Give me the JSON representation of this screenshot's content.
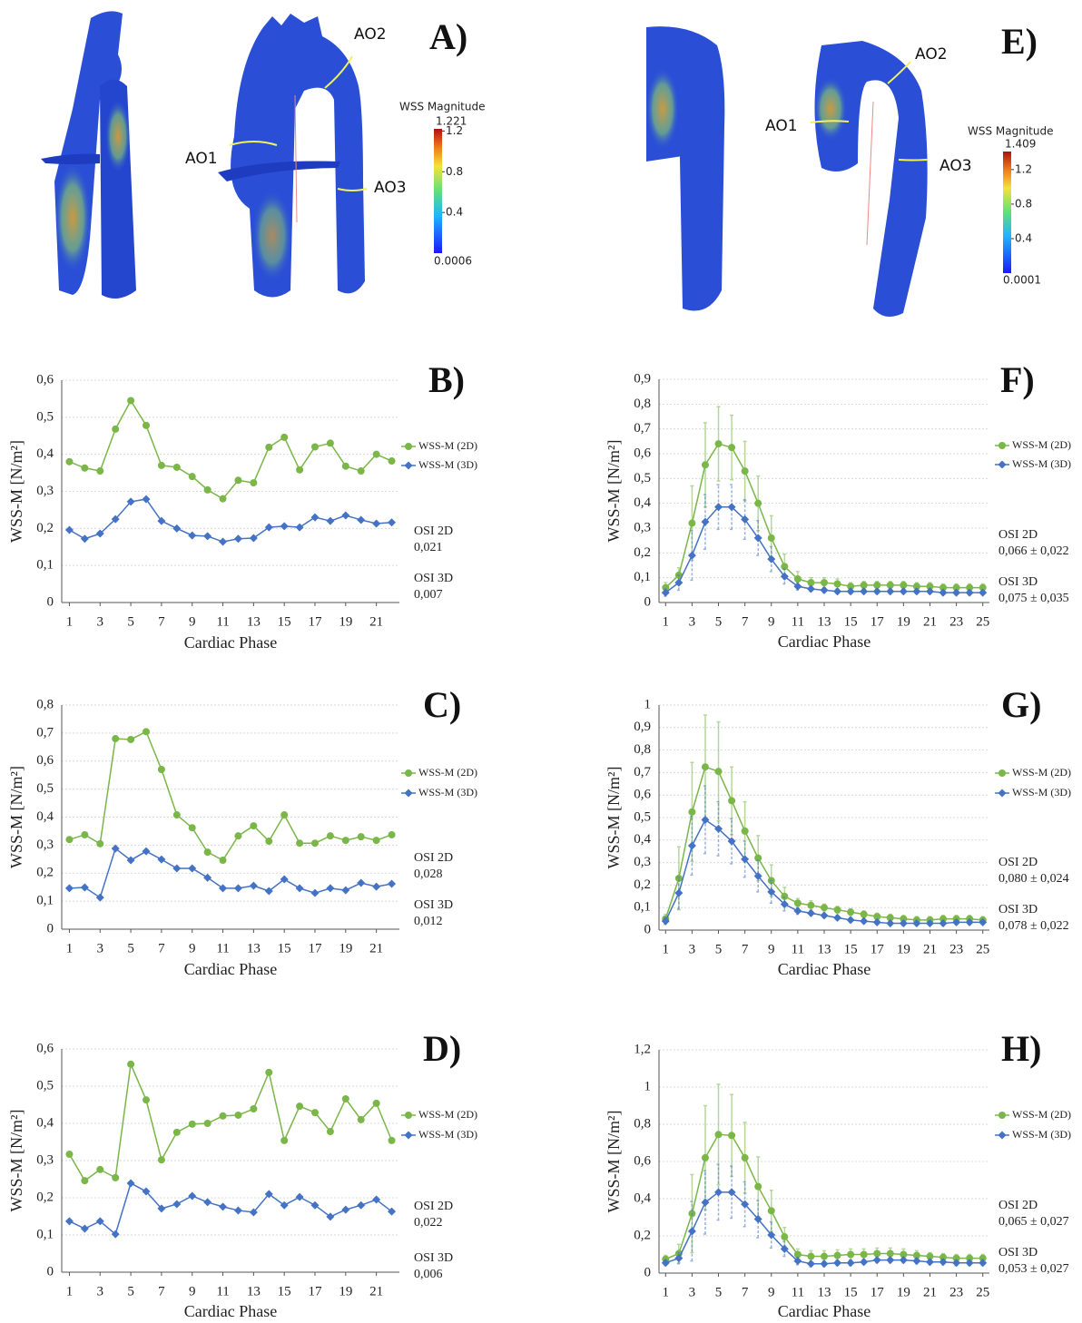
{
  "panels": [
    {
      "label": "A)",
      "annotations": [
        "AO1",
        "AO2",
        "AO3"
      ],
      "colorbar": {
        "title": "WSS Magnitude",
        "max": 1.221,
        "min": 0.0006,
        "ticks": [
          1.2,
          0.8,
          0.4
        ]
      }
    },
    {
      "label": "E)",
      "annotations": [
        "AO1",
        "AO2",
        "AO3"
      ],
      "colorbar": {
        "title": "WSS Magnitude",
        "max": 1.409,
        "min": 0.0001,
        "ticks": [
          1.2,
          0.8,
          0.4
        ]
      }
    }
  ],
  "chart_data": [
    {
      "type": "line",
      "label": "B)",
      "ylabel": "WSS-M [N/m²]",
      "xlabel": "Cardiac Phase",
      "x": [
        1,
        2,
        3,
        4,
        5,
        6,
        7,
        8,
        9,
        10,
        11,
        12,
        13,
        14,
        15,
        16,
        17,
        18,
        19,
        20,
        21,
        22
      ],
      "xlim": [
        0.5,
        22.5
      ],
      "xticks": [
        1,
        3,
        5,
        7,
        9,
        11,
        13,
        15,
        17,
        19,
        21
      ],
      "ylim": [
        0,
        0.6
      ],
      "yticks": [
        0,
        {
          "value": 0.1,
          "label": "0,1"
        },
        {
          "value": 0.2,
          "label": "0,2"
        },
        {
          "value": 0.3,
          "label": "0,3"
        },
        {
          "value": 0.4,
          "label": "0,4"
        },
        {
          "value": 0.5,
          "label": "0,5"
        },
        {
          "value": 0.6,
          "label": "0,6"
        }
      ],
      "grid": true,
      "legend": "right",
      "series": [
        {
          "name": "WSS-M (2D)",
          "color": "#7ab648",
          "marker": "circle",
          "values": [
            0.38,
            0.363,
            0.355,
            0.468,
            0.545,
            0.478,
            0.37,
            0.365,
            0.34,
            0.304,
            0.28,
            0.33,
            0.323,
            0.419,
            0.446,
            0.358,
            0.42,
            0.43,
            0.368,
            0.355,
            0.4,
            0.382
          ]
        },
        {
          "name": "WSS-M (3D)",
          "color": "#4472c4",
          "marker": "diamond",
          "values": [
            0.196,
            0.172,
            0.186,
            0.225,
            0.272,
            0.279,
            0.22,
            0.2,
            0.181,
            0.179,
            0.164,
            0.172,
            0.174,
            0.203,
            0.206,
            0.203,
            0.23,
            0.22,
            0.235,
            0.223,
            0.213,
            0.216
          ]
        }
      ],
      "annotations": [
        "OSI 2D",
        "0,021",
        "OSI 3D",
        "0,007"
      ]
    },
    {
      "type": "line",
      "label": "C)",
      "ylabel": "WSS-M [N/m²]",
      "xlabel": "Cardiac Phase",
      "x": [
        1,
        2,
        3,
        4,
        5,
        6,
        7,
        8,
        9,
        10,
        11,
        12,
        13,
        14,
        15,
        16,
        17,
        18,
        19,
        20,
        21,
        22
      ],
      "xlim": [
        0.5,
        22.5
      ],
      "xticks": [
        1,
        3,
        5,
        7,
        9,
        11,
        13,
        15,
        17,
        19,
        21
      ],
      "ylim": [
        0,
        0.8
      ],
      "yticks": [
        0,
        {
          "value": 0.1,
          "label": "0,1"
        },
        {
          "value": 0.2,
          "label": "0,2"
        },
        {
          "value": 0.3,
          "label": "0,3"
        },
        {
          "value": 0.4,
          "label": "0,4"
        },
        {
          "value": 0.5,
          "label": "0,5"
        },
        {
          "value": 0.6,
          "label": "0,6"
        },
        {
          "value": 0.7,
          "label": "0,7"
        },
        {
          "value": 0.8,
          "label": "0,8"
        }
      ],
      "grid": true,
      "legend": "right",
      "series": [
        {
          "name": "WSS-M (2D)",
          "color": "#7ab648",
          "marker": "circle",
          "values": [
            0.32,
            0.337,
            0.305,
            0.68,
            0.677,
            0.705,
            0.57,
            0.408,
            0.362,
            0.275,
            0.246,
            0.333,
            0.369,
            0.314,
            0.408,
            0.307,
            0.307,
            0.333,
            0.317,
            0.33,
            0.317,
            0.337
          ]
        },
        {
          "name": "WSS-M (3D)",
          "color": "#4472c4",
          "marker": "diamond",
          "values": [
            0.146,
            0.149,
            0.113,
            0.288,
            0.246,
            0.278,
            0.249,
            0.217,
            0.217,
            0.184,
            0.146,
            0.146,
            0.155,
            0.136,
            0.178,
            0.146,
            0.129,
            0.146,
            0.139,
            0.165,
            0.152,
            0.162
          ]
        }
      ],
      "annotations": [
        "OSI 2D",
        "0,028",
        "OSI 3D",
        "0,012"
      ]
    },
    {
      "type": "line",
      "label": "D)",
      "ylabel": "WSS-M [N/m²]",
      "xlabel": "Cardiac Phase",
      "x": [
        1,
        2,
        3,
        4,
        5,
        6,
        7,
        8,
        9,
        10,
        11,
        12,
        13,
        14,
        15,
        16,
        17,
        18,
        19,
        20,
        21,
        22
      ],
      "xlim": [
        0.5,
        22.5
      ],
      "xticks": [
        1,
        3,
        5,
        7,
        9,
        11,
        13,
        15,
        17,
        19,
        21
      ],
      "ylim": [
        0,
        0.6
      ],
      "yticks": [
        0,
        {
          "value": 0.1,
          "label": "0,1"
        },
        {
          "value": 0.2,
          "label": "0,2"
        },
        {
          "value": 0.3,
          "label": "0,3"
        },
        {
          "value": 0.4,
          "label": "0,4"
        },
        {
          "value": 0.5,
          "label": "0,5"
        },
        {
          "value": 0.6,
          "label": "0,6"
        }
      ],
      "grid": true,
      "legend": "right",
      "series": [
        {
          "name": "WSS-M (2D)",
          "color": "#7ab648",
          "marker": "circle",
          "values": [
            0.317,
            0.246,
            0.276,
            0.254,
            0.559,
            0.463,
            0.302,
            0.376,
            0.398,
            0.4,
            0.42,
            0.422,
            0.439,
            0.537,
            0.354,
            0.446,
            0.429,
            0.378,
            0.466,
            0.41,
            0.454,
            0.354
          ]
        },
        {
          "name": "WSS-M (3D)",
          "color": "#4472c4",
          "marker": "diamond",
          "values": [
            0.137,
            0.117,
            0.137,
            0.102,
            0.239,
            0.217,
            0.171,
            0.183,
            0.205,
            0.188,
            0.176,
            0.166,
            0.161,
            0.21,
            0.18,
            0.202,
            0.18,
            0.149,
            0.168,
            0.18,
            0.195,
            0.163
          ]
        }
      ],
      "annotations": [
        "OSI 2D",
        "0,022",
        "OSI 3D",
        "0,006"
      ]
    },
    {
      "type": "line",
      "label": "F)",
      "ylabel": "WSS-M [N/m²]",
      "xlabel": "Cardiac Phase",
      "x": [
        1,
        2,
        3,
        4,
        5,
        6,
        7,
        8,
        9,
        10,
        11,
        12,
        13,
        14,
        15,
        16,
        17,
        18,
        19,
        20,
        21,
        22,
        23,
        24,
        25
      ],
      "xlim": [
        0.5,
        25.5
      ],
      "xticks": [
        1,
        3,
        5,
        7,
        9,
        11,
        13,
        15,
        17,
        19,
        21,
        23,
        25
      ],
      "ylim": [
        0,
        0.9
      ],
      "yticks": [
        0,
        {
          "value": 0.1,
          "label": "0,1"
        },
        {
          "value": 0.2,
          "label": "0,2"
        },
        {
          "value": 0.3,
          "label": "0,3"
        },
        {
          "value": 0.4,
          "label": "0,4"
        },
        {
          "value": 0.5,
          "label": "0,5"
        },
        {
          "value": 0.6,
          "label": "0,6"
        },
        {
          "value": 0.7,
          "label": "0,7"
        },
        {
          "value": 0.8,
          "label": "0,8"
        },
        {
          "value": 0.9,
          "label": "0,9"
        }
      ],
      "grid": true,
      "legend": "right",
      "series": [
        {
          "name": "WSS-M (2D)",
          "color": "#7ab648",
          "marker": "circle",
          "values": [
            0.06,
            0.11,
            0.32,
            0.555,
            0.64,
            0.625,
            0.53,
            0.4,
            0.26,
            0.145,
            0.095,
            0.08,
            0.08,
            0.075,
            0.065,
            0.07,
            0.07,
            0.07,
            0.07,
            0.065,
            0.065,
            0.06,
            0.06,
            0.06,
            0.06
          ],
          "errors": [
            0.02,
            0.03,
            0.15,
            0.17,
            0.15,
            0.13,
            0.12,
            0.11,
            0.09,
            0.05,
            0.03,
            0.02,
            0.02,
            0.02,
            0.015,
            0.015,
            0.015,
            0.015,
            0.015,
            0.015,
            0.015,
            0.015,
            0.015,
            0.015,
            0.015
          ]
        },
        {
          "name": "WSS-M (3D)",
          "color": "#4472c4",
          "marker": "diamond",
          "values": [
            0.04,
            0.08,
            0.19,
            0.325,
            0.385,
            0.385,
            0.335,
            0.26,
            0.175,
            0.105,
            0.065,
            0.055,
            0.05,
            0.045,
            0.045,
            0.045,
            0.045,
            0.045,
            0.045,
            0.045,
            0.045,
            0.04,
            0.04,
            0.04,
            0.04
          ],
          "errors": [
            0.015,
            0.03,
            0.1,
            0.11,
            0.09,
            0.09,
            0.08,
            0.07,
            0.05,
            0.03,
            0.015,
            0.01,
            0.01,
            0.01,
            0.01,
            0.01,
            0.01,
            0.01,
            0.01,
            0.01,
            0.01,
            0.01,
            0.01,
            0.01,
            0.01
          ]
        }
      ],
      "annotations": [
        "OSI 2D",
        "0,066 ± 0,022",
        "OSI 3D",
        "0,075 ± 0,035"
      ]
    },
    {
      "type": "line",
      "label": "G)",
      "ylabel": "WSS-M [N/m²]",
      "xlabel": "Cardiac Phase",
      "x": [
        1,
        2,
        3,
        4,
        5,
        6,
        7,
        8,
        9,
        10,
        11,
        12,
        13,
        14,
        15,
        16,
        17,
        18,
        19,
        20,
        21,
        22,
        23,
        24,
        25
      ],
      "xlim": [
        0.5,
        25.5
      ],
      "xticks": [
        1,
        3,
        5,
        7,
        9,
        11,
        13,
        15,
        17,
        19,
        21,
        23,
        25
      ],
      "ylim": [
        0,
        1
      ],
      "yticks": [
        0,
        {
          "value": 0.1,
          "label": "0,1"
        },
        {
          "value": 0.2,
          "label": "0,2"
        },
        {
          "value": 0.3,
          "label": "0,3"
        },
        {
          "value": 0.4,
          "label": "0,4"
        },
        {
          "value": 0.5,
          "label": "0,5"
        },
        {
          "value": 0.6,
          "label": "0,6"
        },
        {
          "value": 0.7,
          "label": "0,7"
        },
        {
          "value": 0.8,
          "label": "0,8"
        },
        {
          "value": 0.9,
          "label": "0,9"
        },
        1
      ],
      "grid": true,
      "legend": "right",
      "series": [
        {
          "name": "WSS-M (2D)",
          "color": "#7ab648",
          "marker": "circle",
          "values": [
            0.05,
            0.23,
            0.525,
            0.725,
            0.705,
            0.575,
            0.44,
            0.32,
            0.22,
            0.15,
            0.12,
            0.11,
            0.1,
            0.09,
            0.08,
            0.07,
            0.06,
            0.055,
            0.05,
            0.045,
            0.045,
            0.05,
            0.05,
            0.05,
            0.045
          ],
          "errors": [
            0.02,
            0.14,
            0.22,
            0.23,
            0.22,
            0.15,
            0.13,
            0.1,
            0.07,
            0.04,
            0.02,
            0.02,
            0.015,
            0.015,
            0.015,
            0.015,
            0.015,
            0.015,
            0.015,
            0.015,
            0.015,
            0.015,
            0.015,
            0.015,
            0.015
          ]
        },
        {
          "name": "WSS-M (3D)",
          "color": "#4472c4",
          "marker": "diamond",
          "values": [
            0.04,
            0.165,
            0.375,
            0.49,
            0.45,
            0.395,
            0.315,
            0.24,
            0.17,
            0.115,
            0.085,
            0.075,
            0.065,
            0.055,
            0.045,
            0.04,
            0.035,
            0.03,
            0.03,
            0.03,
            0.03,
            0.03,
            0.035,
            0.035,
            0.035
          ],
          "errors": [
            0.015,
            0.07,
            0.13,
            0.15,
            0.12,
            0.1,
            0.08,
            0.07,
            0.05,
            0.03,
            0.015,
            0.01,
            0.01,
            0.01,
            0.01,
            0.01,
            0.01,
            0.01,
            0.01,
            0.01,
            0.01,
            0.01,
            0.01,
            0.01,
            0.01
          ]
        }
      ],
      "annotations": [
        "OSI 2D",
        "0,080 ± 0,024",
        "OSI 3D",
        "0,078 ± 0,022"
      ]
    },
    {
      "type": "line",
      "label": "H)",
      "ylabel": "WSS-M [N/m²]",
      "xlabel": "Cardiac Phase",
      "x": [
        1,
        2,
        3,
        4,
        5,
        6,
        7,
        8,
        9,
        10,
        11,
        12,
        13,
        14,
        15,
        16,
        17,
        18,
        19,
        20,
        21,
        22,
        23,
        24,
        25
      ],
      "xlim": [
        0.5,
        25.5
      ],
      "xticks": [
        1,
        3,
        5,
        7,
        9,
        11,
        13,
        15,
        17,
        19,
        21,
        23,
        25
      ],
      "ylim": [
        0,
        1.2
      ],
      "yticks": [
        0,
        {
          "value": 0.2,
          "label": "0,2"
        },
        {
          "value": 0.4,
          "label": "0,4"
        },
        {
          "value": 0.6,
          "label": "0,6"
        },
        {
          "value": 0.8,
          "label": "0,8"
        },
        1,
        {
          "value": 1.2,
          "label": "1,2"
        }
      ],
      "grid": true,
      "legend": "right",
      "series": [
        {
          "name": "WSS-M (2D)",
          "color": "#7ab648",
          "marker": "circle",
          "values": [
            0.075,
            0.105,
            0.32,
            0.62,
            0.745,
            0.74,
            0.62,
            0.465,
            0.335,
            0.195,
            0.1,
            0.09,
            0.09,
            0.095,
            0.1,
            0.1,
            0.105,
            0.105,
            0.1,
            0.095,
            0.09,
            0.085,
            0.08,
            0.08,
            0.08
          ],
          "errors": [
            0.02,
            0.05,
            0.21,
            0.28,
            0.27,
            0.22,
            0.19,
            0.16,
            0.11,
            0.05,
            0.03,
            0.03,
            0.03,
            0.03,
            0.03,
            0.03,
            0.03,
            0.03,
            0.03,
            0.025,
            0.02,
            0.02,
            0.02,
            0.02,
            0.02
          ]
        },
        {
          "name": "WSS-M (3D)",
          "color": "#4472c4",
          "marker": "diamond",
          "values": [
            0.055,
            0.08,
            0.225,
            0.38,
            0.435,
            0.435,
            0.37,
            0.29,
            0.205,
            0.13,
            0.065,
            0.05,
            0.05,
            0.055,
            0.055,
            0.06,
            0.07,
            0.07,
            0.07,
            0.065,
            0.06,
            0.06,
            0.055,
            0.055,
            0.055
          ],
          "errors": [
            0.015,
            0.03,
            0.16,
            0.17,
            0.15,
            0.14,
            0.12,
            0.1,
            0.07,
            0.04,
            0.02,
            0.015,
            0.015,
            0.015,
            0.015,
            0.015,
            0.015,
            0.015,
            0.015,
            0.015,
            0.015,
            0.015,
            0.015,
            0.015,
            0.015
          ]
        }
      ],
      "annotations": [
        "OSI 2D",
        "0,065 ± 0,027",
        "OSI 3D",
        "0,053 ± 0,027"
      ]
    }
  ]
}
